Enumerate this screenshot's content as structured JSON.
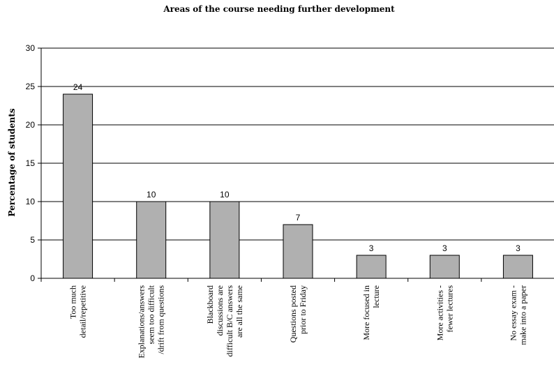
{
  "chart_data": {
    "type": "bar",
    "title": "Areas of the course needing further development",
    "ylabel": "Percentage of students",
    "xlabel": "",
    "ylim": [
      0,
      30
    ],
    "yticks": [
      0,
      5,
      10,
      15,
      20,
      25,
      30
    ],
    "grid": true,
    "bar_color": "#b0b0b0",
    "categories": [
      [
        "Too much",
        "detail/repetitive"
      ],
      [
        "Explanations/answers",
        "seem too difficult",
        "/drift from questions"
      ],
      [
        "Blackboard",
        "discussions are",
        "difficult B/C answers",
        "are all the same"
      ],
      [
        "Questions posted",
        "prior to Friday"
      ],
      [
        "More focused in",
        "lecture"
      ],
      [
        "More activities -",
        "fewer lectures"
      ],
      [
        "No essay exam -",
        "make into a paper"
      ]
    ],
    "values": [
      24,
      10,
      10,
      7,
      3,
      3,
      3
    ]
  }
}
